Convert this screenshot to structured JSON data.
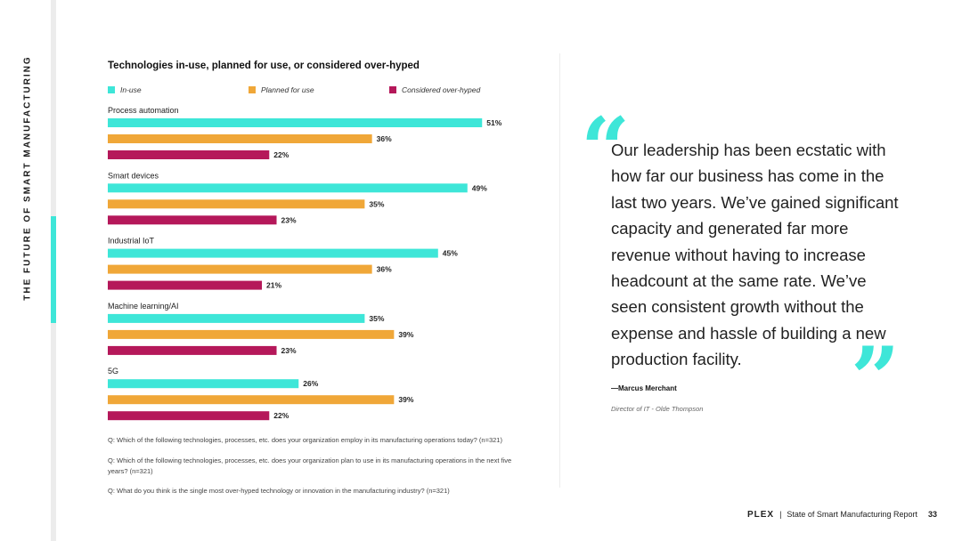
{
  "sidebar": {
    "title": "THE FUTURE OF SMART MANUFACTURING"
  },
  "chart_data": {
    "type": "bar",
    "orientation": "horizontal",
    "title": "Technologies in-use, planned for use, or considered over-hyped",
    "categories": [
      "Process automation",
      "Smart devices",
      "Industrial IoT",
      "Machine learning/AI",
      "5G"
    ],
    "series": [
      {
        "name": "In-use",
        "color": "#3ee6d8",
        "values": [
          51,
          49,
          45,
          35,
          26
        ]
      },
      {
        "name": "Planned for use",
        "color": "#f0a738",
        "values": [
          36,
          35,
          36,
          39,
          39
        ]
      },
      {
        "name": "Considered over-hyped",
        "color": "#b5185a",
        "values": [
          22,
          23,
          21,
          23,
          22
        ]
      }
    ],
    "value_suffix": "%",
    "xlim": [
      0,
      60
    ],
    "legend_position": "top",
    "questions": [
      "Q: Which of the following technologies, processes, etc. does your organization employ in its manufacturing operations today? (n=321)",
      "Q: Which of the following technologies, processes, etc. does your organization plan to use in its manufacturing operations in the next five years? (n=321)",
      "Q: What do you think is the single most over-hyped technology or innovation in the manufacturing industry? (n=321)"
    ]
  },
  "quote": {
    "open_mark": "“",
    "close_mark": "”",
    "text": "Our leadership has been ecstatic with how far our business has come in the last two years. We’ve gained significant capacity and generated far more revenue without having to increase headcount at the same rate. We’ve seen consistent growth without the expense and hassle of building a new production facility.",
    "author": "—Marcus Merchant",
    "role": "Director of IT - Olde Thompson"
  },
  "footer": {
    "logo": "PLEX",
    "separator": "|",
    "report": "State of Smart Manufacturing Report",
    "page": "33"
  }
}
